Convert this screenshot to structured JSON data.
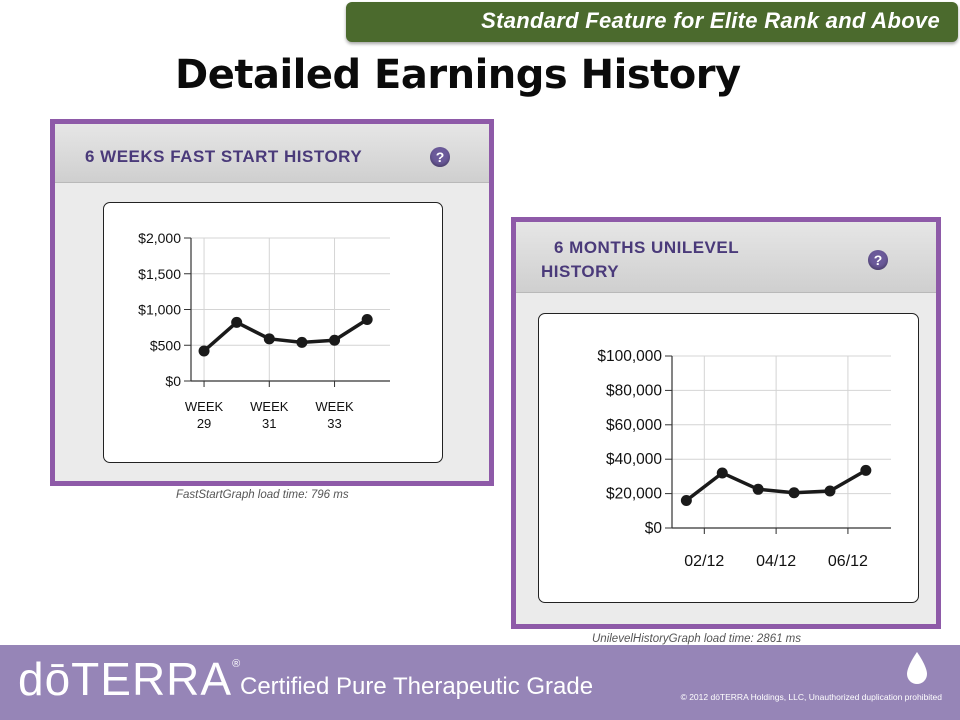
{
  "banner": {
    "text": "Standard Feature for Elite Rank and Above"
  },
  "page_title": "Detailed Earnings History",
  "panels": {
    "fast_start": {
      "title": "6 WEEKS FAST START HISTORY",
      "help": "?",
      "load_time": "FastStartGraph load time: 796 ms"
    },
    "unilevel": {
      "title_line1": "6 MONTHS UNILEVEL",
      "title_line2": "HISTORY",
      "help": "?",
      "load_time": "UnilevelHistoryGraph load time: 2861 ms"
    }
  },
  "footer": {
    "logo": "dōTERRA",
    "logo_mark": "®",
    "tagline": "Certified Pure Therapeutic Grade",
    "copyright": "© 2012 dōTERRA Holdings, LLC, Unauthorized duplication prohibited"
  },
  "colors": {
    "banner": "#4b6a2d",
    "panel_border": "#8e5aa8",
    "footer": "#9685b7",
    "series": "#1a1a1a"
  },
  "icons": {
    "help": "question-circle-icon",
    "drop": "droplet-icon"
  },
  "chart_data": [
    {
      "type": "line",
      "title": "6 WEEKS FAST START HISTORY",
      "x": [
        1,
        2,
        3,
        4,
        5,
        6
      ],
      "x_ticks": [
        {
          "at": 1,
          "line1": "WEEK",
          "line2": "29"
        },
        {
          "at": 3,
          "line1": "WEEK",
          "line2": "31"
        },
        {
          "at": 5,
          "line1": "WEEK",
          "line2": "33"
        }
      ],
      "xlim": [
        0.6,
        6.7
      ],
      "y_ticks": [
        "$0",
        "$500",
        "$1,000",
        "$1,500",
        "$2,000"
      ],
      "y_tick_values": [
        0,
        500,
        1000,
        1500,
        2000
      ],
      "ylim": [
        0,
        2000
      ],
      "series": [
        {
          "values": [
            420,
            820,
            590,
            540,
            570,
            860
          ]
        }
      ],
      "grid": true
    },
    {
      "type": "line",
      "title": "6 MONTHS UNILEVEL HISTORY",
      "x": [
        1,
        2,
        3,
        4,
        5,
        6
      ],
      "x_ticks": [
        {
          "at": 1.5,
          "line1": "02/12",
          "line2": ""
        },
        {
          "at": 3.5,
          "line1": "04/12",
          "line2": ""
        },
        {
          "at": 5.5,
          "line1": "06/12",
          "line2": ""
        }
      ],
      "xlim": [
        0.6,
        6.7
      ],
      "y_ticks": [
        "$0",
        "$20,000",
        "$40,000",
        "$60,000",
        "$80,000",
        "$100,000"
      ],
      "y_tick_values": [
        0,
        20000,
        40000,
        60000,
        80000,
        100000
      ],
      "ylim": [
        0,
        100000
      ],
      "series": [
        {
          "values": [
            16000,
            32000,
            22500,
            20500,
            21500,
            33500
          ]
        }
      ],
      "grid": true
    }
  ]
}
